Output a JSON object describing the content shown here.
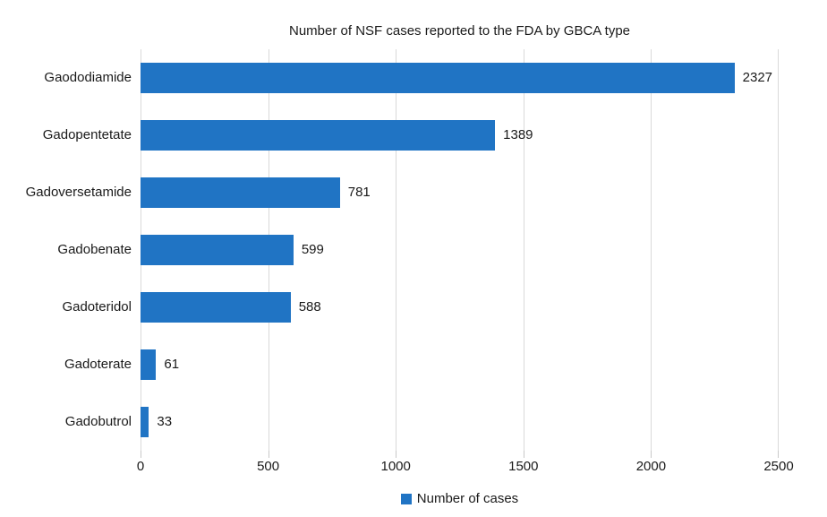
{
  "title": "Number of NSF cases reported to the FDA by GBCA type",
  "legend": {
    "label": "Number of cases"
  },
  "colors": {
    "bar": "#2074c4",
    "gridline": "#d9d9d9",
    "tick": "#c9c9c9",
    "text": "#1a1a1a"
  },
  "chart_data": {
    "type": "bar",
    "orientation": "horizontal",
    "title": "Number of NSF cases reported to the FDA by GBCA type",
    "categories": [
      "Gaododiamide",
      "Gadopentetate",
      "Gadoversetamide",
      "Gadobenate",
      "Gadoteridol",
      "Gadoterate",
      "Gadobutrol"
    ],
    "values": [
      2327,
      1389,
      781,
      599,
      588,
      61,
      33
    ],
    "series_name": "Number of cases",
    "xlabel": "",
    "ylabel": "",
    "xlim": [
      0,
      2500
    ],
    "xticks": [
      0,
      500,
      1000,
      1500,
      2000,
      2500
    ],
    "grid": "vertical",
    "legend_position": "bottom",
    "data_labels": true
  }
}
